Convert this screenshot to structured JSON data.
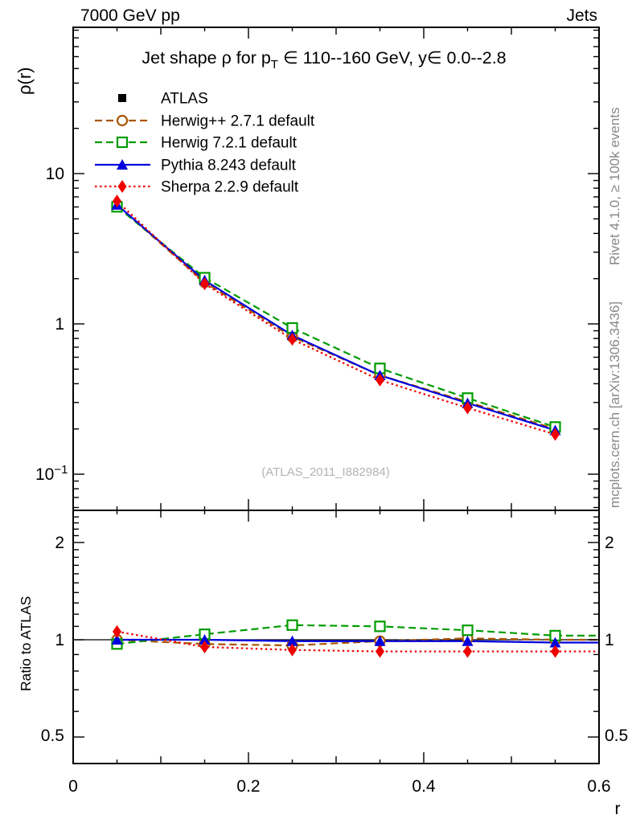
{
  "header": {
    "left": "7000 GeV pp",
    "right": "Jets"
  },
  "title": {
    "pre": "Jet shape ρ for p",
    "sub": "T",
    "post": " ∈ 110--160 GeV, y∈ 0.0--2.8"
  },
  "side_notes": {
    "top": "Rivet 4.1.0, ≥ 100k events",
    "bottom": "mcplots.cern.ch [arXiv:1306.3436]"
  },
  "watermark": "(ATLAS_2011_I882984)",
  "colors": {
    "atlas": "#000000",
    "herwigpp": "#aa5500",
    "herwig7": "#009c00",
    "pythia": "#0000dd",
    "sherpa": "#ee0000",
    "side_text": "#888888",
    "watermark": "#b3b3b3"
  },
  "ticks": {
    "main_y_10": "10",
    "main_y_1": "1",
    "main_y_low_base": "10",
    "main_y_low_exp": "−1",
    "ratio_2": "2",
    "ratio_1": "1",
    "ratio_05": "0.5",
    "x_0": "0",
    "x_02": "0.2",
    "x_04": "0.4",
    "x_06": "0.6"
  },
  "chart_data": {
    "type": "line",
    "title": "Jet shape ρ for p_T ∈ 110--160 GeV, y∈ 0.0--2.8",
    "xlabel": "r",
    "ylabel_main": "ρ(r)",
    "ylabel_ratio": "Ratio to ATLAS",
    "yscale": "log",
    "xlim": [
      0,
      0.6
    ],
    "ylim_main": [
      0.057,
      94
    ],
    "ylim_ratio": [
      0.41,
      2.52
    ],
    "x_tick_values": [
      0,
      0.2,
      0.4,
      0.6
    ],
    "x_tick_labels": [
      "0",
      "0.2",
      "0.4",
      "0.6"
    ],
    "main_y_tick_values": [
      10,
      1,
      0.1
    ],
    "main_y_tick_labels": [
      "10",
      "1",
      "0.1"
    ],
    "ratio_y_tick_values": [
      2,
      1,
      0.5
    ],
    "ratio_y_tick_labels": [
      "2",
      "1",
      "0.5"
    ],
    "legend_position": "top-left",
    "x": [
      0.05,
      0.15,
      0.25,
      0.35,
      0.45,
      0.55
    ],
    "series": [
      {
        "name": "ATLAS",
        "color": "#000000",
        "marker": "square-filled",
        "line": "none",
        "values": [
          6.2,
          1.95,
          0.85,
          0.46,
          0.3,
          0.2
        ],
        "ratio": [
          1,
          1,
          1,
          1,
          1,
          1
        ]
      },
      {
        "name": "Herwig++ 2.7.1 default",
        "color": "#aa5500",
        "marker": "circle-open",
        "line": "dashed",
        "values": [
          6.2,
          1.89,
          0.82,
          0.455,
          0.303,
          0.2
        ],
        "ratio": [
          1.0,
          0.97,
          0.96,
          0.99,
          1.01,
          1.0
        ]
      },
      {
        "name": "Herwig 7.2.1 default",
        "color": "#009c00",
        "marker": "square-open",
        "line": "dashed",
        "values": [
          6.01,
          2.03,
          0.94,
          0.506,
          0.321,
          0.206
        ],
        "ratio": [
          0.97,
          1.04,
          1.11,
          1.1,
          1.07,
          1.03
        ]
      },
      {
        "name": "Pythia 8.243 default",
        "color": "#0000dd",
        "marker": "triangle-filled",
        "line": "solid",
        "values": [
          6.2,
          1.95,
          0.84,
          0.455,
          0.297,
          0.196
        ],
        "ratio": [
          1.0,
          1.0,
          0.99,
          0.99,
          0.99,
          0.98
        ]
      },
      {
        "name": "Sherpa 2.2.9 default",
        "color": "#ee0000",
        "marker": "diamond-filled",
        "line": "dotted",
        "values": [
          6.57,
          1.85,
          0.79,
          0.423,
          0.276,
          0.184
        ],
        "ratio": [
          1.06,
          0.95,
          0.93,
          0.92,
          0.92,
          0.92
        ]
      }
    ]
  }
}
